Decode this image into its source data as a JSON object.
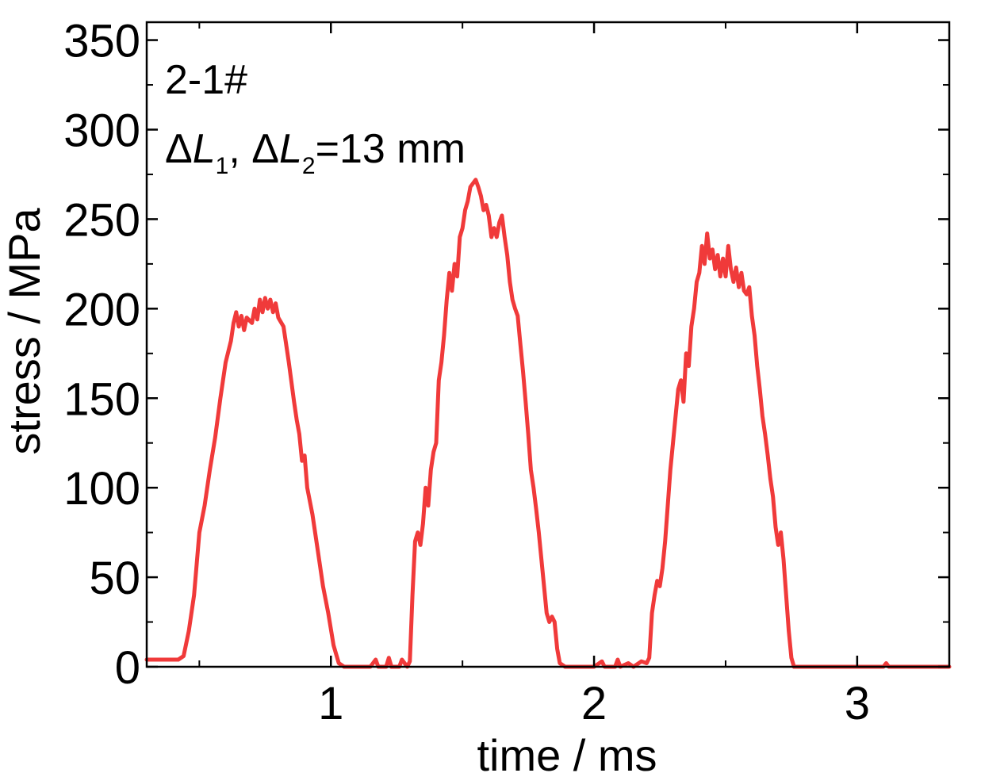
{
  "chart_data": {
    "type": "line",
    "title": "",
    "xlabel": "time / ms",
    "ylabel": "stress / MPa",
    "xlim": [
      0.3,
      3.35
    ],
    "ylim": [
      0,
      360
    ],
    "x_ticks": [
      1,
      2,
      3
    ],
    "x_tick_labels": [
      "1",
      "2",
      "3"
    ],
    "y_ticks": [
      0,
      50,
      100,
      150,
      200,
      250,
      300,
      350
    ],
    "y_tick_labels": [
      "0",
      "50",
      "100",
      "150",
      "200",
      "250",
      "300",
      "350"
    ],
    "grid": false,
    "annotations": [
      {
        "parts": [
          {
            "text": "2-1#"
          }
        ]
      },
      {
        "parts": [
          {
            "text": "Δ"
          },
          {
            "text": "L",
            "italic": true
          },
          {
            "text": "1",
            "sub": true
          },
          {
            "text": ", Δ"
          },
          {
            "text": "L",
            "italic": true
          },
          {
            "text": "2",
            "sub": true
          },
          {
            "text": "=13 mm"
          }
        ]
      }
    ],
    "series": [
      {
        "color": "#f03a3a",
        "points": [
          [
            0.3,
            4
          ],
          [
            0.42,
            4
          ],
          [
            0.44,
            6
          ],
          [
            0.46,
            20
          ],
          [
            0.48,
            40
          ],
          [
            0.5,
            75
          ],
          [
            0.52,
            90
          ],
          [
            0.54,
            110
          ],
          [
            0.56,
            128
          ],
          [
            0.58,
            150
          ],
          [
            0.6,
            170
          ],
          [
            0.62,
            182
          ],
          [
            0.63,
            192
          ],
          [
            0.64,
            198
          ],
          [
            0.65,
            190
          ],
          [
            0.66,
            196
          ],
          [
            0.67,
            188
          ],
          [
            0.68,
            195
          ],
          [
            0.7,
            192
          ],
          [
            0.71,
            200
          ],
          [
            0.72,
            194
          ],
          [
            0.73,
            205
          ],
          [
            0.74,
            198
          ],
          [
            0.75,
            206
          ],
          [
            0.76,
            200
          ],
          [
            0.77,
            205
          ],
          [
            0.78,
            198
          ],
          [
            0.79,
            203
          ],
          [
            0.8,
            195
          ],
          [
            0.82,
            190
          ],
          [
            0.84,
            170
          ],
          [
            0.86,
            148
          ],
          [
            0.87,
            138
          ],
          [
            0.88,
            130
          ],
          [
            0.89,
            115
          ],
          [
            0.9,
            118
          ],
          [
            0.91,
            100
          ],
          [
            0.93,
            85
          ],
          [
            0.95,
            65
          ],
          [
            0.97,
            45
          ],
          [
            0.99,
            30
          ],
          [
            1.01,
            12
          ],
          [
            1.03,
            2
          ],
          [
            1.05,
            0
          ],
          [
            1.1,
            0
          ],
          [
            1.15,
            0
          ],
          [
            1.17,
            4
          ],
          [
            1.18,
            0
          ],
          [
            1.21,
            0
          ],
          [
            1.22,
            5
          ],
          [
            1.23,
            0
          ],
          [
            1.26,
            0
          ],
          [
            1.27,
            4
          ],
          [
            1.28,
            2
          ],
          [
            1.29,
            0
          ],
          [
            1.3,
            3
          ],
          [
            1.31,
            40
          ],
          [
            1.32,
            70
          ],
          [
            1.33,
            75
          ],
          [
            1.34,
            68
          ],
          [
            1.35,
            80
          ],
          [
            1.36,
            100
          ],
          [
            1.37,
            90
          ],
          [
            1.38,
            110
          ],
          [
            1.39,
            120
          ],
          [
            1.4,
            125
          ],
          [
            1.41,
            160
          ],
          [
            1.42,
            170
          ],
          [
            1.43,
            185
          ],
          [
            1.44,
            205
          ],
          [
            1.45,
            220
          ],
          [
            1.46,
            210
          ],
          [
            1.47,
            225
          ],
          [
            1.48,
            218
          ],
          [
            1.49,
            240
          ],
          [
            1.5,
            245
          ],
          [
            1.51,
            255
          ],
          [
            1.52,
            260
          ],
          [
            1.53,
            268
          ],
          [
            1.54,
            270
          ],
          [
            1.55,
            272
          ],
          [
            1.56,
            268
          ],
          [
            1.57,
            263
          ],
          [
            1.58,
            255
          ],
          [
            1.59,
            258
          ],
          [
            1.6,
            252
          ],
          [
            1.61,
            240
          ],
          [
            1.62,
            245
          ],
          [
            1.63,
            240
          ],
          [
            1.64,
            248
          ],
          [
            1.65,
            252
          ],
          [
            1.66,
            240
          ],
          [
            1.67,
            230
          ],
          [
            1.68,
            215
          ],
          [
            1.69,
            205
          ],
          [
            1.7,
            200
          ],
          [
            1.71,
            196
          ],
          [
            1.72,
            180
          ],
          [
            1.73,
            165
          ],
          [
            1.74,
            148
          ],
          [
            1.75,
            130
          ],
          [
            1.76,
            110
          ],
          [
            1.77,
            100
          ],
          [
            1.78,
            88
          ],
          [
            1.79,
            75
          ],
          [
            1.8,
            60
          ],
          [
            1.81,
            45
          ],
          [
            1.82,
            30
          ],
          [
            1.83,
            25
          ],
          [
            1.84,
            28
          ],
          [
            1.85,
            25
          ],
          [
            1.86,
            10
          ],
          [
            1.87,
            2
          ],
          [
            1.89,
            0
          ],
          [
            1.95,
            0
          ],
          [
            2.0,
            0
          ],
          [
            2.03,
            3
          ],
          [
            2.04,
            0
          ],
          [
            2.08,
            0
          ],
          [
            2.09,
            4
          ],
          [
            2.1,
            0
          ],
          [
            2.13,
            2
          ],
          [
            2.15,
            0
          ],
          [
            2.18,
            3
          ],
          [
            2.2,
            2
          ],
          [
            2.21,
            5
          ],
          [
            2.22,
            30
          ],
          [
            2.23,
            40
          ],
          [
            2.24,
            48
          ],
          [
            2.25,
            45
          ],
          [
            2.26,
            55
          ],
          [
            2.27,
            70
          ],
          [
            2.28,
            90
          ],
          [
            2.29,
            110
          ],
          [
            2.3,
            125
          ],
          [
            2.31,
            140
          ],
          [
            2.32,
            155
          ],
          [
            2.33,
            160
          ],
          [
            2.34,
            148
          ],
          [
            2.35,
            175
          ],
          [
            2.36,
            168
          ],
          [
            2.37,
            190
          ],
          [
            2.38,
            200
          ],
          [
            2.39,
            215
          ],
          [
            2.4,
            220
          ],
          [
            2.41,
            235
          ],
          [
            2.42,
            225
          ],
          [
            2.43,
            242
          ],
          [
            2.44,
            228
          ],
          [
            2.45,
            233
          ],
          [
            2.46,
            222
          ],
          [
            2.47,
            230
          ],
          [
            2.48,
            218
          ],
          [
            2.49,
            228
          ],
          [
            2.5,
            218
          ],
          [
            2.51,
            235
          ],
          [
            2.52,
            222
          ],
          [
            2.53,
            215
          ],
          [
            2.54,
            223
          ],
          [
            2.55,
            212
          ],
          [
            2.56,
            220
          ],
          [
            2.57,
            210
          ],
          [
            2.58,
            208
          ],
          [
            2.59,
            212
          ],
          [
            2.6,
            196
          ],
          [
            2.61,
            185
          ],
          [
            2.62,
            168
          ],
          [
            2.63,
            155
          ],
          [
            2.64,
            140
          ],
          [
            2.65,
            130
          ],
          [
            2.66,
            118
          ],
          [
            2.67,
            105
          ],
          [
            2.68,
            95
          ],
          [
            2.69,
            78
          ],
          [
            2.7,
            68
          ],
          [
            2.71,
            75
          ],
          [
            2.72,
            60
          ],
          [
            2.73,
            40
          ],
          [
            2.74,
            20
          ],
          [
            2.75,
            5
          ],
          [
            2.76,
            0
          ],
          [
            2.9,
            0
          ],
          [
            3.0,
            0
          ],
          [
            3.1,
            0
          ],
          [
            3.11,
            2
          ],
          [
            3.12,
            0
          ],
          [
            3.2,
            0
          ],
          [
            3.35,
            0
          ]
        ]
      }
    ]
  }
}
